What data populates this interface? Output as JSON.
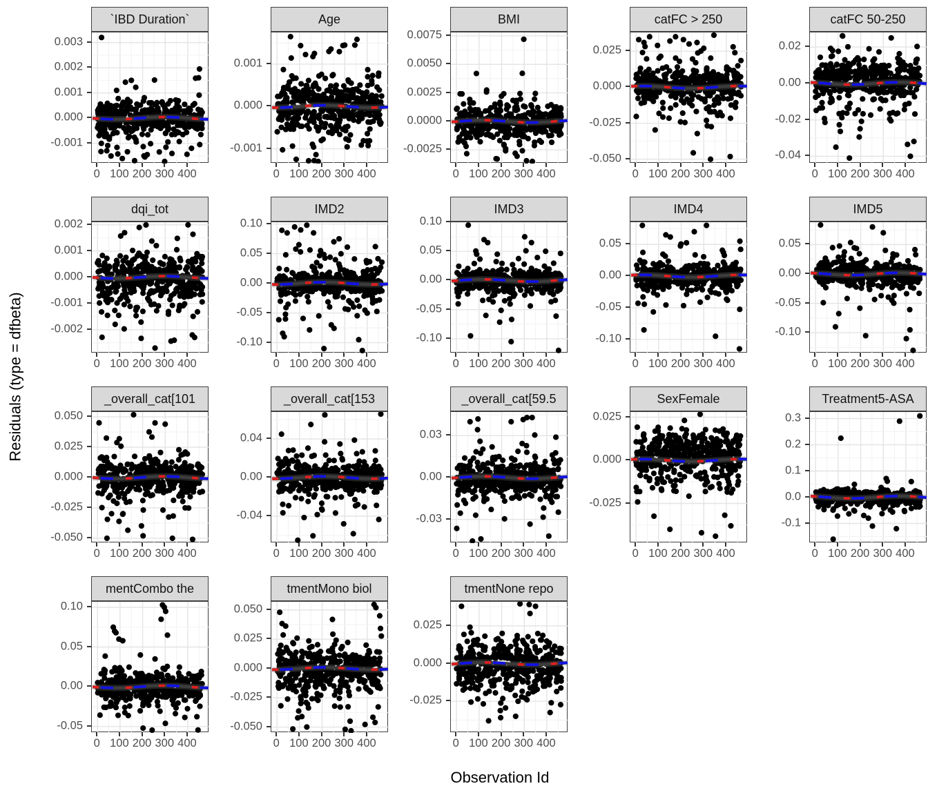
{
  "axes": {
    "x_title": "Observation Id",
    "y_title": "Residuals (type = dfbeta)"
  },
  "chart_data": {
    "type": "scatter",
    "title": "",
    "xlabel": "Observation Id",
    "ylabel": "Residuals (type = dfbeta)",
    "legend": "none",
    "grid": true,
    "point_color": "#000000",
    "smooth_line": {
      "y": 0,
      "base_color": "#3c3c3c",
      "red_dash_color": "#e01e1e",
      "blue_dash_color": "#1212e6",
      "band_color": "#808080"
    },
    "strip_fill": "#d9d9d9",
    "x_ticks": [
      0,
      100,
      200,
      300,
      400
    ],
    "x_tick_labels": [
      "0",
      "100",
      "200",
      "300",
      "400"
    ],
    "x_range": [
      -25,
      495
    ],
    "facets": [
      {
        "title": "`IBD Duration`",
        "ytick_labels": [
          "0.003",
          "0.002",
          "0.001",
          "0.000",
          "-0.001"
        ],
        "ytick_values": [
          0.003,
          0.002,
          0.001,
          0,
          -0.001
        ],
        "ylim": [
          -0.0018,
          0.0034
        ],
        "n": 430,
        "center": 0,
        "band": 0.00028,
        "tail": 0.00075,
        "skew": -0.15,
        "seed": 13,
        "outliers": [
          [
            18,
            0.0032
          ],
          [
            452,
            0.00195
          ],
          [
            448,
            0.0016
          ],
          [
            150,
            0.0015
          ],
          [
            60,
            -0.0015
          ],
          [
            110,
            -0.0016
          ],
          [
            330,
            -0.0014
          ]
        ]
      },
      {
        "title": "Age",
        "ytick_labels": [
          "0.001",
          "0.000",
          "-0.001"
        ],
        "ytick_values": [
          0.001,
          0,
          -0.001
        ],
        "ylim": [
          -0.00135,
          0.00175
        ],
        "n": 430,
        "center": 0,
        "band": 0.0003,
        "tail": 0.0007,
        "skew": -0.05,
        "seed": 7932,
        "outliers": [
          [
            60,
            0.00165
          ],
          [
            300,
            0.00145
          ],
          [
            345,
            0.00145
          ],
          [
            230,
            0.0013
          ],
          [
            85,
            -0.00125
          ],
          [
            140,
            -0.0013
          ],
          [
            165,
            -0.00128
          ]
        ]
      },
      {
        "title": "BMI",
        "ytick_labels": [
          "0.0075",
          "0.0050",
          "0.0025",
          "0.0000",
          "-0.0025"
        ],
        "ytick_values": [
          0.0075,
          0.005,
          0.0025,
          0,
          -0.0025
        ],
        "ylim": [
          -0.0037,
          0.0078
        ],
        "n": 430,
        "center": 0,
        "band": 0.0007,
        "tail": 0.0014,
        "skew": -0.35,
        "seed": 15851,
        "outliers": [
          [
            298,
            0.0072
          ],
          [
            88,
            0.0042
          ],
          [
            180,
            -0.0033
          ],
          [
            310,
            -0.0035
          ],
          [
            260,
            -0.0028
          ]
        ]
      },
      {
        "title": "catFC > 250",
        "ytick_labels": [
          "0.025",
          "0.000",
          "-0.025",
          "-0.050"
        ],
        "ytick_values": [
          0.025,
          0,
          -0.025,
          -0.05
        ],
        "ylim": [
          -0.053,
          0.038
        ],
        "n": 440,
        "center": 0.002,
        "band": 0.005,
        "tail": 0.018,
        "skew": -0.55,
        "seed": 23770,
        "outliers": [
          [
            12,
            0.033
          ],
          [
            35,
            0.031
          ],
          [
            60,
            0.035
          ],
          [
            95,
            0.029
          ],
          [
            150,
            0.032
          ],
          [
            175,
            0.035
          ],
          [
            210,
            0.033
          ],
          [
            235,
            0.03
          ],
          [
            270,
            0.031
          ],
          [
            300,
            0.027
          ],
          [
            330,
            -0.05
          ],
          [
            345,
            0.037
          ],
          [
            430,
            0.028
          ]
        ]
      },
      {
        "title": "catFC 50-250",
        "ytick_labels": [
          "0.02",
          "0.00",
          "-0.02",
          "-0.04"
        ],
        "ytick_values": [
          0.02,
          0,
          -0.02,
          -0.04
        ],
        "ylim": [
          -0.044,
          0.028
        ],
        "n": 440,
        "center": 0.003,
        "band": 0.005,
        "tail": 0.015,
        "skew": -0.55,
        "seed": 31689,
        "outliers": [
          [
            120,
            0.026
          ],
          [
            335,
            0.025
          ],
          [
            420,
            -0.04
          ],
          [
            150,
            -0.041
          ],
          [
            90,
            -0.035
          ]
        ]
      },
      {
        "title": "dqi_tot",
        "ytick_labels": [
          "0.002",
          "0.001",
          "0.000",
          "-0.001",
          "-0.002"
        ],
        "ytick_values": [
          0.002,
          0.001,
          0,
          -0.001,
          -0.002
        ],
        "ylim": [
          -0.0029,
          0.0021
        ],
        "n": 430,
        "center": 0,
        "band": 0.0004,
        "tail": 0.0011,
        "skew": -0.25,
        "seed": 39608,
        "outliers": [
          [
            185,
            0.0019
          ],
          [
            215,
            0.002
          ],
          [
            120,
            0.0017
          ],
          [
            255,
            -0.0027
          ],
          [
            340,
            -0.0024
          ],
          [
            420,
            -0.0022
          ]
        ]
      },
      {
        "title": "IMD2",
        "ytick_labels": [
          "0.10",
          "0.05",
          "0.00",
          "-0.05",
          "-0.10"
        ],
        "ytick_values": [
          0.1,
          0.05,
          0,
          -0.05,
          -0.1
        ],
        "ylim": [
          -0.118,
          0.103
        ],
        "n": 430,
        "center": 0,
        "band": 0.009,
        "tail": 0.032,
        "skew": -0.15,
        "seed": 47527,
        "outliers": [
          [
            45,
            0.085
          ],
          [
            78,
            0.095
          ],
          [
            105,
            0.09
          ],
          [
            132,
            0.098
          ],
          [
            162,
            0.085
          ],
          [
            252,
            0.07
          ],
          [
            275,
            0.075
          ],
          [
            208,
            -0.11
          ],
          [
            378,
            -0.115
          ],
          [
            32,
            -0.09
          ],
          [
            362,
            -0.095
          ]
        ]
      },
      {
        "title": "IMD3",
        "ytick_labels": [
          "0.10",
          "0.05",
          "0.00",
          "-0.05",
          "-0.10"
        ],
        "ytick_values": [
          0.1,
          0.05,
          0,
          -0.05,
          -0.1
        ],
        "ylim": [
          -0.125,
          0.1
        ],
        "n": 430,
        "center": 0,
        "band": 0.009,
        "tail": 0.03,
        "skew": -0.1,
        "seed": 55446,
        "outliers": [
          [
            52,
            0.095
          ],
          [
            122,
            0.07
          ],
          [
            138,
            0.065
          ],
          [
            302,
            0.075
          ],
          [
            332,
            0.065
          ],
          [
            452,
            -0.12
          ],
          [
            242,
            -0.105
          ],
          [
            62,
            -0.095
          ],
          [
            130,
            -0.06
          ]
        ]
      },
      {
        "title": "IMD4",
        "ytick_labels": [
          "0.05",
          "0.00",
          "-0.05",
          "-0.10"
        ],
        "ytick_values": [
          0.05,
          0,
          -0.05,
          -0.1
        ],
        "ylim": [
          -0.122,
          0.085
        ],
        "n": 430,
        "center": 0,
        "band": 0.009,
        "tail": 0.027,
        "skew": -0.2,
        "seed": 63365,
        "outliers": [
          [
            28,
            0.08
          ],
          [
            132,
            0.065
          ],
          [
            258,
            0.07
          ],
          [
            312,
            0.08
          ],
          [
            352,
            -0.095
          ],
          [
            458,
            -0.115
          ],
          [
            35,
            -0.085
          ],
          [
            460,
            0.055
          ]
        ]
      },
      {
        "title": "IMD5",
        "ytick_labels": [
          "0.05",
          "0.00",
          "-0.05",
          "-0.10"
        ],
        "ytick_values": [
          0.05,
          0,
          -0.05,
          -0.1
        ],
        "ylim": [
          -0.135,
          0.088
        ],
        "n": 430,
        "center": 0,
        "band": 0.009,
        "tail": 0.024,
        "skew": -0.25,
        "seed": 71284,
        "outliers": [
          [
            22,
            0.085
          ],
          [
            252,
            0.08
          ],
          [
            432,
            -0.13
          ],
          [
            88,
            -0.09
          ],
          [
            222,
            -0.105
          ],
          [
            402,
            -0.11
          ],
          [
            418,
            -0.095
          ],
          [
            300,
            0.07
          ]
        ]
      },
      {
        "title": "_overall_cat[101",
        "ytick_labels": [
          "0.050",
          "0.025",
          "0.000",
          "-0.025",
          "-0.050"
        ],
        "ytick_values": [
          0.05,
          0.025,
          0,
          -0.025,
          -0.05
        ],
        "ylim": [
          -0.054,
          0.054
        ],
        "n": 430,
        "center": 0,
        "band": 0.007,
        "tail": 0.02,
        "skew": -0.05,
        "seed": 79203,
        "outliers": [
          [
            160,
            0.052
          ],
          [
            42,
            -0.05
          ],
          [
            332,
            -0.05
          ],
          [
            202,
            -0.048
          ],
          [
            255,
            0.045
          ],
          [
            300,
            0.044
          ]
        ]
      },
      {
        "title": "_overall_cat[153",
        "ytick_labels": [
          "0.04",
          "0.00",
          "-0.04"
        ],
        "ytick_values": [
          0.04,
          0,
          -0.04
        ],
        "ylim": [
          -0.068,
          0.068
        ],
        "n": 430,
        "center": 0,
        "band": 0.008,
        "tail": 0.022,
        "skew": -0.05,
        "seed": 87122,
        "outliers": [
          [
            212,
            0.065
          ],
          [
            92,
            -0.065
          ],
          [
            150,
            0.055
          ],
          [
            20,
            0.045
          ]
        ]
      },
      {
        "title": "_overall_cat[59.5",
        "ytick_labels": [
          "0.03",
          "0.00",
          "-0.03"
        ],
        "ytick_values": [
          0.03,
          0,
          -0.03
        ],
        "ylim": [
          -0.047,
          0.047
        ],
        "n": 430,
        "center": 0,
        "band": 0.006,
        "tail": 0.017,
        "skew": -0.15,
        "seed": 95041,
        "outliers": [
          [
            95,
            0.042
          ],
          [
            242,
            0.04
          ],
          [
            312,
            0.043
          ],
          [
            335,
            0.043
          ],
          [
            108,
            -0.044
          ],
          [
            60,
            0.04
          ]
        ]
      },
      {
        "title": "SexFemale",
        "ytick_labels": [
          "0.025",
          "0.000",
          "-0.025"
        ],
        "ytick_values": [
          0.025,
          0,
          -0.025
        ],
        "ylim": [
          -0.048,
          0.028
        ],
        "n": 440,
        "center": 0.004,
        "band": 0.007,
        "tail": 0.014,
        "skew": -0.7,
        "seed": 102960,
        "outliers": [
          [
            352,
            -0.044
          ],
          [
            150,
            -0.04
          ],
          [
            290,
            -0.042
          ],
          [
            420,
            -0.038
          ]
        ]
      },
      {
        "title": "Treatment5-ASA",
        "ytick_labels": [
          "0.3",
          "0.2",
          "0.1",
          "0.0",
          "-0.1"
        ],
        "ytick_values": [
          0.3,
          0.2,
          0.1,
          0,
          -0.1
        ],
        "ylim": [
          -0.175,
          0.325
        ],
        "n": 420,
        "center": 0,
        "band": 0.013,
        "tail": 0.03,
        "skew": -0.25,
        "seed": 110879,
        "outliers": [
          [
            462,
            0.31
          ],
          [
            372,
            0.29
          ],
          [
            112,
            0.225
          ],
          [
            78,
            -0.16
          ],
          [
            252,
            -0.11
          ],
          [
            358,
            -0.12
          ]
        ]
      },
      {
        "title": "mentCombo the",
        "ytick_labels": [
          "0.10",
          "0.05",
          "0.00",
          "-0.05"
        ],
        "ytick_values": [
          0.1,
          0.05,
          0,
          -0.05
        ],
        "ylim": [
          -0.058,
          0.107
        ],
        "n": 420,
        "center": 0,
        "band": 0.008,
        "tail": 0.02,
        "skew": -0.45,
        "seed": 118798,
        "outliers": [
          [
            288,
            0.103
          ],
          [
            296,
            0.1
          ],
          [
            302,
            0.095
          ],
          [
            282,
            0.085
          ],
          [
            70,
            0.075
          ],
          [
            76,
            0.07
          ],
          [
            82,
            0.068
          ],
          [
            95,
            0.06
          ],
          [
            112,
            0.058
          ],
          [
            202,
            -0.052
          ],
          [
            242,
            -0.055
          ],
          [
            310,
            0.065
          ],
          [
            255,
            0.035
          ],
          [
            190,
            0.04
          ]
        ]
      },
      {
        "title": "tmentMono biol",
        "ytick_labels": [
          "0.050",
          "0.025",
          "0.000",
          "-0.025",
          "-0.050"
        ],
        "ytick_values": [
          0.05,
          0.025,
          0,
          -0.025,
          -0.05
        ],
        "ylim": [
          -0.055,
          0.057
        ],
        "n": 430,
        "center": 0,
        "band": 0.009,
        "tail": 0.023,
        "skew": -0.3,
        "seed": 126717,
        "outliers": [
          [
            430,
            0.055
          ],
          [
            438,
            0.052
          ],
          [
            12,
            0.048
          ],
          [
            302,
            -0.052
          ],
          [
            132,
            -0.05
          ],
          [
            455,
            0.045
          ]
        ]
      },
      {
        "title": "tmentNone repo",
        "ytick_labels": [
          "0.025",
          "0.000",
          "-0.025"
        ],
        "ytick_values": [
          0.025,
          0,
          -0.025
        ],
        "ylim": [
          -0.046,
          0.041
        ],
        "n": 430,
        "center": 0,
        "band": 0.008,
        "tail": 0.018,
        "skew": -0.35,
        "seed": 134636,
        "outliers": [
          [
            22,
            0.038
          ],
          [
            322,
            0.04
          ],
          [
            142,
            -0.038
          ],
          [
            262,
            -0.035
          ],
          [
            350,
            0.038
          ]
        ]
      }
    ]
  }
}
